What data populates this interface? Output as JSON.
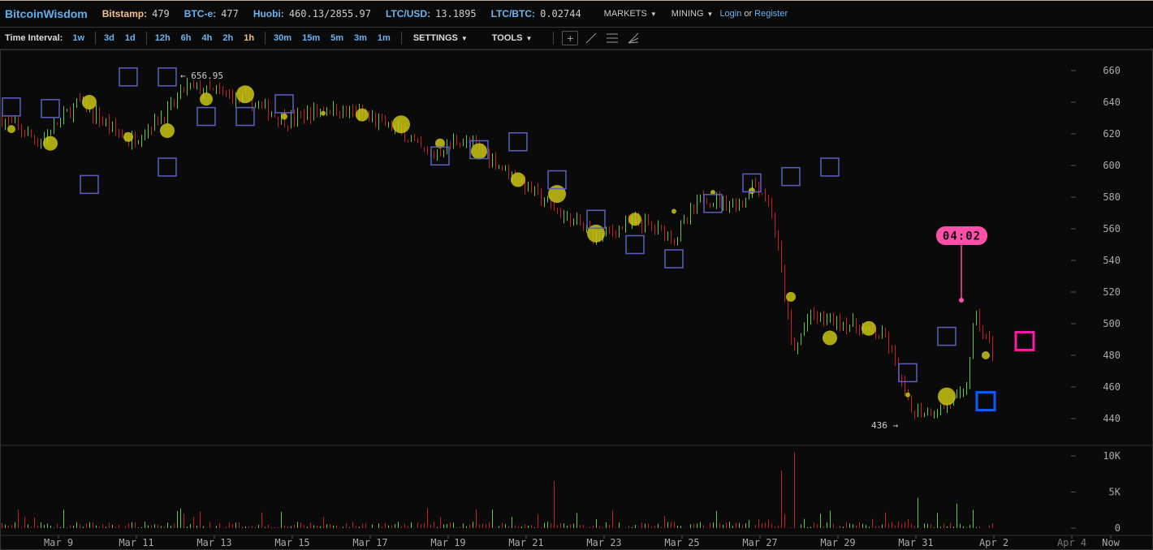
{
  "header": {
    "logo": "BitcoinWisdom",
    "tickers": [
      {
        "label": "Bitstamp:",
        "value": "479",
        "highlight": true
      },
      {
        "label": "BTC-e:",
        "value": "477"
      },
      {
        "label": "Huobi:",
        "value": "460.13/2855.97"
      },
      {
        "label": "LTC/USD:",
        "value": "13.1895"
      },
      {
        "label": "LTC/BTC:",
        "value": "0.02744"
      }
    ],
    "menus": [
      "MARKETS",
      "MINING"
    ],
    "login": "Login",
    "or": "or",
    "register": "Register"
  },
  "toolbar": {
    "time_interval_label": "Time Interval:",
    "interval_groups": [
      [
        "1w"
      ],
      [
        "3d",
        "1d"
      ],
      [
        "12h",
        "6h",
        "4h",
        "2h",
        "1h"
      ],
      [
        "30m",
        "15m",
        "5m",
        "3m",
        "1m"
      ]
    ],
    "active_interval": "1h",
    "settings": "SETTINGS",
    "tools": "TOOLS",
    "tool_icons": [
      "crosshair-icon",
      "trendline-icon",
      "horizontal-lines-icon",
      "fan-icon"
    ]
  },
  "colors": {
    "up": "#5fc94f",
    "down": "#c42222",
    "bubble": "#c8c414",
    "order": "#5a5fc0",
    "timer": "#ff4fa8",
    "bid": "#0a5cff",
    "ask": "#ff1aa8"
  },
  "chart_data": {
    "type": "candlestick",
    "price_axis": {
      "ticks": [
        440,
        460,
        480,
        500,
        520,
        540,
        560,
        580,
        600,
        620,
        640,
        660
      ],
      "range": [
        432,
        674
      ]
    },
    "volume_axis": {
      "ticks": [
        "0",
        "5K",
        "10K"
      ],
      "values": [
        0,
        5000,
        10000
      ],
      "range": [
        0,
        10500
      ]
    },
    "x_ticks": [
      "Mar 9",
      "Mar 11",
      "Mar 13",
      "Mar 15",
      "Mar 17",
      "Mar 19",
      "Mar 21",
      "Mar 23",
      "Mar 25",
      "Mar 27",
      "Mar 29",
      "Mar 31",
      "Apr 2",
      "Apr 4",
      "Now"
    ],
    "x_range": [
      "Mar 7 12:00",
      "Apr 5 12:00"
    ],
    "high_label": "← 656.95",
    "low_label": "436 →",
    "high": 656.95,
    "low": 436,
    "timer": "04:02",
    "last_price": 480,
    "price_path": [
      [
        "Mar 7 12:00",
        630
      ],
      [
        "Mar 8 12:00",
        615
      ],
      [
        "Mar 9 12:00",
        640
      ],
      [
        "Mar 10 20:00",
        615
      ],
      [
        "Mar 11 20:00",
        635
      ],
      [
        "Mar 12 06:00",
        650
      ],
      [
        "Mar 13 20:00",
        642
      ],
      [
        "Mar 14 20:00",
        628
      ],
      [
        "Mar 15 20:00",
        636
      ],
      [
        "Mar 16 20:00",
        632
      ],
      [
        "Mar 17 20:00",
        620
      ],
      [
        "Mar 18 12:00",
        605
      ],
      [
        "Mar 19 06:00",
        617
      ],
      [
        "Mar 19 20:00",
        610
      ],
      [
        "Mar 20 20:00",
        590
      ],
      [
        "Mar 21 20:00",
        570
      ],
      [
        "Mar 22 20:00",
        555
      ],
      [
        "Mar 23 20:00",
        565
      ],
      [
        "Mar 24 20:00",
        555
      ],
      [
        "Mar 25 12:00",
        580
      ],
      [
        "Mar 26 12:00",
        575
      ],
      [
        "Mar 26 20:00",
        590
      ],
      [
        "Mar 27 06:00",
        575
      ],
      [
        "Mar 27 12:00",
        540
      ],
      [
        "Mar 27 20:00",
        480
      ],
      [
        "Mar 28 06:00",
        505
      ],
      [
        "Mar 29 06:00",
        500
      ],
      [
        "Mar 30 06:00",
        490
      ],
      [
        "Mar 30 20:00",
        445
      ],
      [
        "Mar 31 12:00",
        445
      ],
      [
        "Apr 1 06:00",
        455
      ],
      [
        "Apr 1 12:00",
        505
      ],
      [
        "Apr 2 00:00",
        480
      ]
    ],
    "volume_spikes": [
      [
        "Mar 21 16:00",
        6500
      ],
      [
        "Mar 27 12:00",
        8000
      ],
      [
        "Mar 27 20:00",
        10500
      ],
      [
        "Mar 31 00:00",
        4200
      ],
      [
        "Apr 1 00:00",
        3400
      ]
    ],
    "trade_bubbles": {
      "start": "Mar 7 19:00",
      "prices": [
        623,
        614,
        640,
        618,
        622,
        642,
        645,
        631,
        633,
        632,
        626,
        614,
        609,
        591,
        582,
        557,
        566,
        571,
        583,
        584,
        517,
        491,
        497,
        455,
        454,
        480
      ],
      "sizes": [
        5,
        9,
        9,
        6,
        9,
        8,
        11,
        4,
        3,
        8,
        11,
        6,
        10,
        9,
        11,
        11,
        8,
        3,
        3,
        4,
        6,
        9,
        9,
        3,
        11,
        5
      ]
    },
    "order_boxes": {
      "start": "Mar 7 19:00",
      "prices": [
        637,
        636,
        588,
        656,
        599,
        631,
        631,
        639,
        null,
        null,
        null,
        606,
        610,
        615,
        591,
        566,
        550,
        541,
        576,
        589,
        593,
        599,
        null,
        469,
        492
      ],
      "extra": [
        [
          656,
          "Mar 11 19:00"
        ]
      ]
    },
    "bid_marker": {
      "date": "Apr 1 19:00",
      "price": 451
    },
    "ask_marker": {
      "date": "Apr 2 19:00",
      "price": 489
    }
  }
}
